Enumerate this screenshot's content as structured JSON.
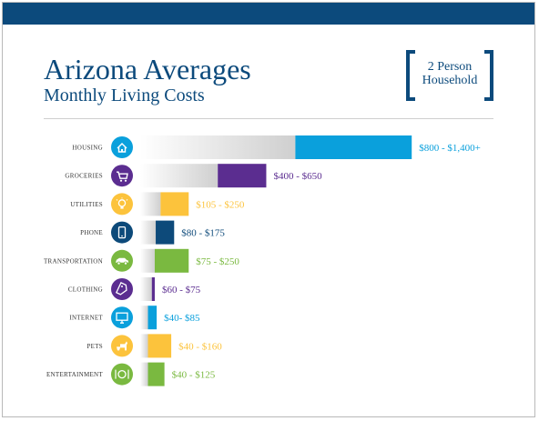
{
  "header": {
    "title": "Arizona Averages",
    "subtitle": "Monthly Living Costs",
    "badge_line1": "2 Person",
    "badge_line2": "Household"
  },
  "colors": {
    "topbar": "#0c4a7c",
    "text": "#0c4a7c"
  },
  "chart_data": {
    "type": "bar",
    "orientation": "horizontal",
    "categories": [
      "HOUSING",
      "GROCERIES",
      "UTILITIES",
      "PHONE",
      "TRANSPORTATION",
      "CLOTHING",
      "INTERNET",
      "PETS",
      "ENTERTAINMENT"
    ],
    "ranges": [
      {
        "min": 800,
        "max": 1400,
        "label": "$800 - $1,400+",
        "color": "#0aa0dc",
        "icon": "house-icon"
      },
      {
        "min": 400,
        "max": 650,
        "label": "$400 - $650",
        "color": "#5b2d90",
        "icon": "cart-icon"
      },
      {
        "min": 105,
        "max": 250,
        "label": "$105 - $250",
        "color": "#fcc33c",
        "icon": "lightbulb-icon"
      },
      {
        "min": 80,
        "max": 175,
        "label": "$80 - $175",
        "color": "#0d4a7a",
        "icon": "phone-icon"
      },
      {
        "min": 75,
        "max": 250,
        "label": "$75 - $250",
        "color": "#7ab940",
        "icon": "car-icon"
      },
      {
        "min": 60,
        "max": 75,
        "label": "$60 - $75",
        "color": "#5b2d90",
        "icon": "tag-icon"
      },
      {
        "min": 40,
        "max": 85,
        "label": "$40- $85",
        "color": "#0aa0dc",
        "icon": "monitor-icon"
      },
      {
        "min": 40,
        "max": 160,
        "label": "$40 - $160",
        "color": "#fcc33c",
        "icon": "dog-icon"
      },
      {
        "min": 40,
        "max": 125,
        "label": "$40 - $125",
        "color": "#7ab940",
        "icon": "plate-icon"
      }
    ]
  }
}
